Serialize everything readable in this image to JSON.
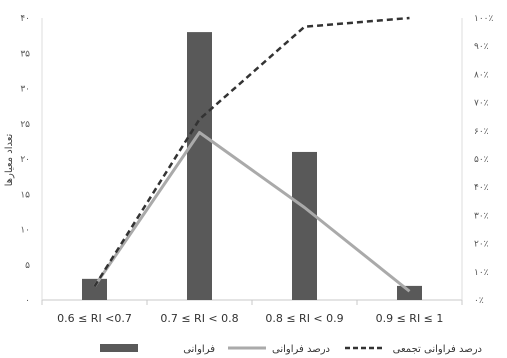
{
  "chart_data": {
    "type": "bar",
    "categories": [
      "0.6 ≤ RI <0.7",
      "0.7 ≤ RI < 0.8",
      "0.8 ≤ RI < 0.9",
      "0.9 ≤ RI ≤ 1"
    ],
    "ylabel": "تعداد معیارها",
    "y_left": {
      "ylim": [
        0,
        40
      ],
      "ticks": [
        0,
        5,
        10,
        15,
        20,
        25,
        30,
        35,
        40
      ],
      "tick_labels": [
        "۰",
        "۵",
        "۱۰",
        "۱۵",
        "۲۰",
        "۲۵",
        "۳۰",
        "۳۵",
        "۴۰"
      ]
    },
    "y_right": {
      "ylim": [
        0,
        100
      ],
      "ticks": [
        0,
        10,
        20,
        30,
        40,
        50,
        60,
        70,
        80,
        90,
        100
      ],
      "tick_labels": [
        "۰٪",
        "۱۰٪",
        "۲۰٪",
        "۳۰٪",
        "۴۰٪",
        "۵۰٪",
        "۶۰٪",
        "۷۰٪",
        "۸۰٪",
        "۹۰٪",
        "۱۰۰٪"
      ]
    },
    "series": [
      {
        "name": "فراوانی",
        "type": "bar",
        "axis": "left",
        "color": "#595959",
        "values": [
          3,
          38,
          21,
          2
        ]
      },
      {
        "name": "درصد فراوانی",
        "type": "line",
        "axis": "right",
        "color": "#aaaaaa",
        "dash": "solid",
        "values": [
          4.8,
          59.4,
          32.8,
          3.1
        ]
      },
      {
        "name": "درصد فراوانی تجمعی",
        "type": "line",
        "axis": "right",
        "color": "#333333",
        "dash": "dashed",
        "values": [
          4.8,
          64.1,
          96.9,
          100
        ]
      }
    ],
    "grid": false,
    "legend_position": "bottom"
  }
}
